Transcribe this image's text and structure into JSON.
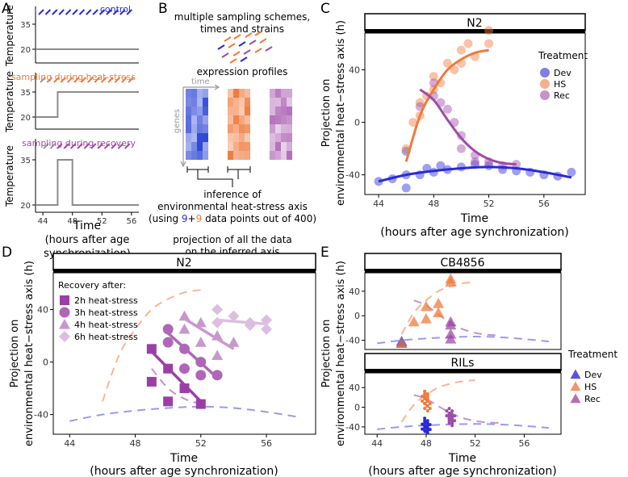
{
  "colors": {
    "dev": "#2a2ad6",
    "hs": "#f07a3c",
    "rec": "#a04aa8",
    "grey": "#8c8c8c"
  },
  "panels": {
    "a": {
      "label": "A",
      "control": "control",
      "heat": "sampling during heat-stress",
      "recovery": "sampling during recovery",
      "ylabel": "Temperature",
      "xlabel": "Time",
      "xsub1": "(hours after age",
      "xsub2": "synchronization)"
    },
    "b": {
      "label": "B",
      "line1": "multiple sampling schemes,",
      "line2": "times and strains",
      "profiles": "expression profiles",
      "time": "time",
      "genes": "genes",
      "inf1": "inference of",
      "inf2": "environmental heat-stress axis",
      "inf3_pre": "(using ",
      "inf3_a": "9",
      "inf3_plus": "+",
      "inf3_b": "9",
      "inf3_post": " data points out of 400)",
      "proj1": "projection of all the data",
      "proj2": "on the inferred axis"
    },
    "c": {
      "label": "C",
      "strip": "N2",
      "ylabel1": "Projection on",
      "ylabel2": "environmental heat−stress axis (h)",
      "xlabel": "Time",
      "xsub": "(hours after age synchronization)",
      "legend_title": "Treatment",
      "legend": [
        "Dev",
        "HS",
        "Rec"
      ]
    },
    "d": {
      "label": "D",
      "strip": "N2",
      "legend_title": "Recovery after:",
      "legend": [
        "2h heat-stress",
        "3h heat-stress",
        "4h heat-stress",
        "6h heat-stress"
      ],
      "ylabel1": "Projection on",
      "ylabel2": "environmental heat−stress axis (h)",
      "xlabel": "Time",
      "xsub": "(hours after age synchronization)"
    },
    "e": {
      "label": "E",
      "strip1": "CB4856",
      "strip2": "RILs",
      "ylabel1": "Projection on",
      "ylabel2": "environmental heat−stress axis (h)",
      "xlabel": "Time",
      "xsub": "(hours after age synchronization)",
      "legend_title": "Treatment",
      "legend": [
        "Dev",
        "HS",
        "Rec"
      ]
    }
  },
  "chart_data": [
    {
      "panel": "A",
      "type": "line",
      "temperature_schemes": [
        {
          "name": "control",
          "ticks": [
            20,
            35
          ],
          "x": [
            43,
            57
          ],
          "y": [
            20,
            20
          ]
        },
        {
          "name": "sampling during heat-stress",
          "ticks": [
            20,
            35
          ],
          "x": [
            43,
            46,
            46,
            57
          ],
          "y": [
            20,
            20,
            35,
            35
          ]
        },
        {
          "name": "sampling during recovery",
          "ticks": [
            20,
            35
          ],
          "x": [
            43,
            46,
            46,
            48,
            48,
            57
          ],
          "y": [
            20,
            20,
            35,
            35,
            20,
            20
          ]
        }
      ],
      "xticks": [
        44,
        48,
        52,
        56
      ]
    },
    {
      "panel": "C",
      "type": "scatter",
      "title": "N2",
      "xlim": [
        43,
        59
      ],
      "ylim": [
        -55,
        68
      ],
      "xticks": [
        44,
        48,
        52,
        56
      ],
      "yticks": [
        -40,
        0,
        40
      ],
      "series": [
        {
          "name": "Dev",
          "points": [
            [
              44,
              -45
            ],
            [
              45,
              -43
            ],
            [
              46,
              -40
            ],
            [
              46,
              -50
            ],
            [
              46,
              -22
            ],
            [
              47,
              -40
            ],
            [
              47.5,
              -35
            ],
            [
              48,
              -38
            ],
            [
              48.5,
              -33
            ],
            [
              49,
              -36
            ],
            [
              50,
              -34
            ],
            [
              51,
              -32
            ],
            [
              52,
              -33
            ],
            [
              53,
              -36
            ],
            [
              54,
              -37
            ],
            [
              55,
              -38
            ],
            [
              56,
              -40
            ],
            [
              57,
              -41
            ],
            [
              58,
              -38
            ]
          ],
          "curve": [
            [
              44,
              -45
            ],
            [
              46,
              -40
            ],
            [
              48,
              -37
            ],
            [
              50,
              -35
            ],
            [
              52,
              -34
            ],
            [
              54,
              -35
            ],
            [
              56,
              -38
            ],
            [
              58,
              -42
            ]
          ]
        },
        {
          "name": "HS",
          "points": [
            [
              46,
              -20
            ],
            [
              46.5,
              0
            ],
            [
              47,
              5
            ],
            [
              47,
              15
            ],
            [
              47.5,
              20
            ],
            [
              48,
              35
            ],
            [
              48,
              25
            ],
            [
              48.5,
              30
            ],
            [
              49,
              45
            ],
            [
              49.5,
              40
            ],
            [
              50,
              55
            ],
            [
              50,
              45
            ],
            [
              50.5,
              60
            ],
            [
              51,
              50
            ],
            [
              52,
              70
            ],
            [
              52,
              60
            ]
          ],
          "curve": [
            [
              46,
              -30
            ],
            [
              47,
              5
            ],
            [
              48,
              25
            ],
            [
              49,
              40
            ],
            [
              50,
              48
            ],
            [
              51,
              53
            ],
            [
              52,
              55
            ]
          ]
        },
        {
          "name": "Rec",
          "points": [
            [
              47,
              12
            ],
            [
              48,
              30
            ],
            [
              48,
              20
            ],
            [
              48.5,
              15
            ],
            [
              49,
              10
            ],
            [
              49.5,
              0
            ],
            [
              50,
              -10
            ],
            [
              50,
              -20
            ],
            [
              51,
              -25
            ],
            [
              51,
              -30
            ],
            [
              52,
              -30
            ],
            [
              53,
              -33
            ],
            [
              54,
              -32
            ]
          ],
          "curve": [
            [
              47,
              25
            ],
            [
              48,
              17
            ],
            [
              49,
              2
            ],
            [
              50,
              -12
            ],
            [
              51,
              -22
            ],
            [
              52,
              -28
            ],
            [
              53,
              -31
            ],
            [
              54,
              -32
            ]
          ]
        }
      ]
    },
    {
      "panel": "D",
      "type": "line",
      "title": "N2",
      "xlim": [
        43,
        59
      ],
      "ylim": [
        -55,
        68
      ],
      "xticks": [
        44,
        48,
        52,
        56
      ],
      "yticks": [
        -40,
        0,
        40
      ],
      "series": [
        {
          "name": "2h heat-stress",
          "points": [
            [
              49,
              10
            ],
            [
              49,
              -15
            ],
            [
              50,
              -5
            ],
            [
              50,
              -30
            ],
            [
              51,
              -20
            ],
            [
              52,
              -32
            ]
          ],
          "line": [
            [
              49,
              8
            ],
            [
              52,
              -30
            ]
          ]
        },
        {
          "name": "3h heat-stress",
          "points": [
            [
              50,
              25
            ],
            [
              50,
              15
            ],
            [
              51,
              10
            ],
            [
              51,
              -5
            ],
            [
              52,
              0
            ],
            [
              52,
              -10
            ],
            [
              53,
              -10
            ]
          ],
          "line": [
            [
              50,
              22
            ],
            [
              53,
              -12
            ]
          ]
        },
        {
          "name": "4h heat-stress",
          "points": [
            [
              51,
              35
            ],
            [
              51,
              25
            ],
            [
              52,
              30
            ],
            [
              52,
              15
            ],
            [
              53,
              20
            ],
            [
              53,
              5
            ],
            [
              54,
              15
            ]
          ],
          "line": [
            [
              51,
              33
            ],
            [
              54,
              10
            ]
          ]
        },
        {
          "name": "6h heat-stress",
          "points": [
            [
              53,
              40
            ],
            [
              53,
              30
            ],
            [
              54,
              35
            ],
            [
              55,
              28
            ],
            [
              55,
              30
            ],
            [
              56,
              32
            ],
            [
              56,
              25
            ]
          ],
          "line": [
            [
              53,
              32
            ],
            [
              56,
              29
            ]
          ]
        }
      ]
    },
    {
      "panel": "E",
      "type": "scatter",
      "facets": [
        {
          "title": "CB4856",
          "xlim": [
            43,
            59
          ],
          "ylim": [
            -55,
            70
          ],
          "yticks": [
            -40,
            0,
            40
          ],
          "series": [
            {
              "name": "Dev",
              "points": [
                [
                  46,
                  -45
                ],
                [
                  46,
                  -42
                ]
              ]
            },
            {
              "name": "HS",
              "points": [
                [
                  46,
                  -45
                ],
                [
                  47,
                  -10
                ],
                [
                  48,
                  -5
                ],
                [
                  48,
                  15
                ],
                [
                  49,
                  5
                ],
                [
                  49,
                  20
                ],
                [
                  50,
                  60
                ],
                [
                  50,
                  55
                ]
              ]
            },
            {
              "name": "Rec",
              "points": [
                [
                  50,
                  -10
                ],
                [
                  50,
                  -15
                ],
                [
                  50,
                  -30
                ],
                [
                  50,
                  -38
                ]
              ]
            }
          ]
        },
        {
          "title": "RILs",
          "xlim": [
            43,
            59
          ],
          "ylim": [
            -55,
            70
          ],
          "xticks": [
            44,
            48,
            52,
            56
          ],
          "yticks": [
            -40,
            0,
            40
          ],
          "series": [
            {
              "name": "Dev",
              "points": [
                [
                  48,
                  -45
                ],
                [
                  48,
                  -40
                ],
                [
                  48,
                  -35
                ],
                [
                  48,
                  -30
                ],
                [
                  47.8,
                  -42
                ],
                [
                  48.2,
                  -38
                ]
              ]
            },
            {
              "name": "HS",
              "points": [
                [
                  48,
                  0
                ],
                [
                  48,
                  10
                ],
                [
                  48,
                  20
                ],
                [
                  48,
                  25
                ],
                [
                  47.8,
                  15
                ],
                [
                  48.2,
                  5
                ]
              ]
            },
            {
              "name": "Rec",
              "points": [
                [
                  50,
                  -10
                ],
                [
                  50,
                  -20
                ],
                [
                  50,
                  -25
                ],
                [
                  50,
                  -30
                ],
                [
                  49.8,
                  -15
                ],
                [
                  50.2,
                  -20
                ]
              ]
            }
          ]
        }
      ]
    }
  ]
}
